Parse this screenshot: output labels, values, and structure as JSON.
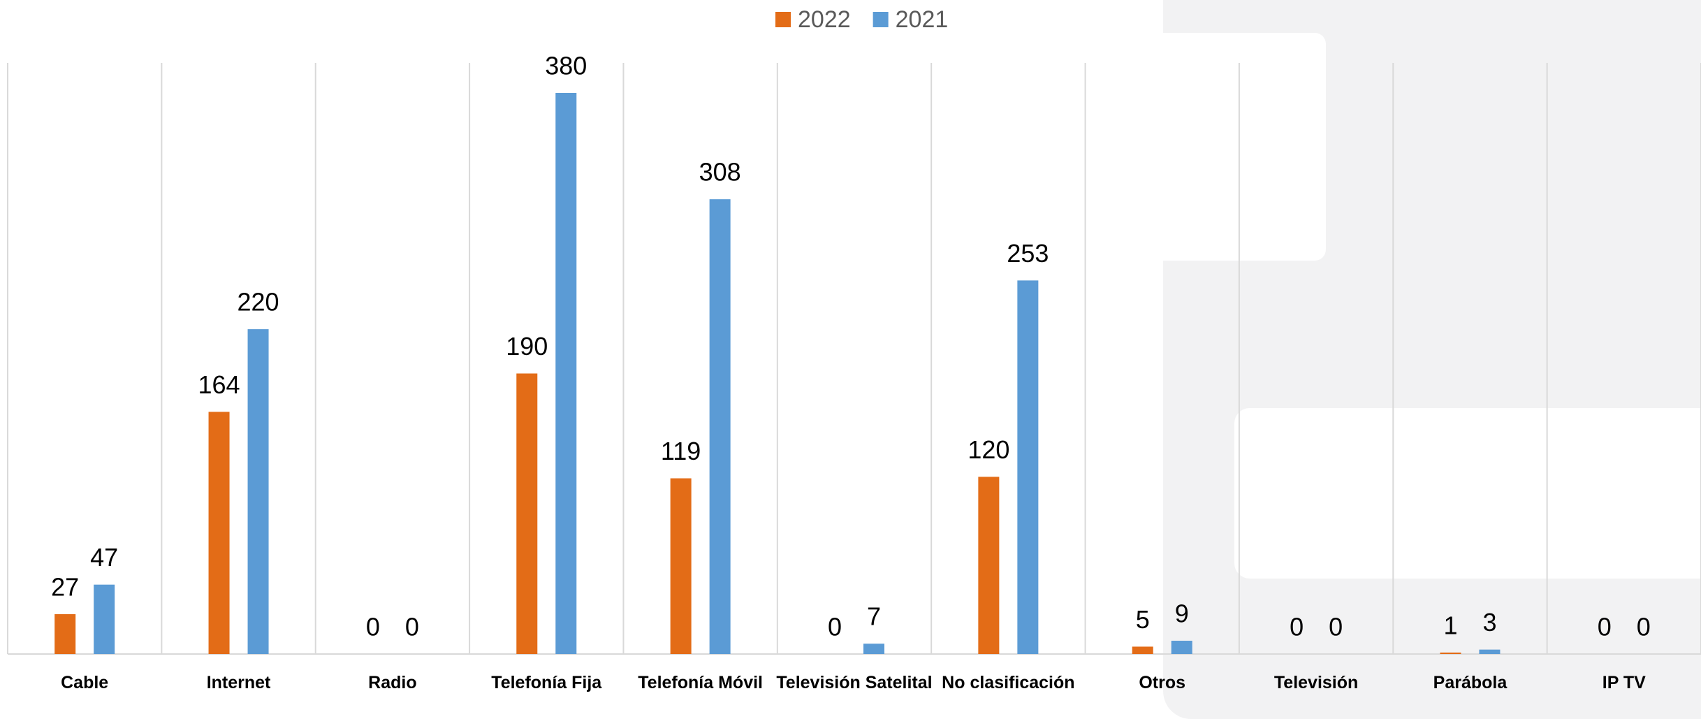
{
  "chart_data": {
    "type": "bar",
    "categories": [
      "Cable",
      "Internet",
      "Radio",
      "Telefonía Fija",
      "Telefonía Móvil",
      "Televisión Satelital",
      "No clasificación",
      "Otros",
      "Televisión",
      "Parábola",
      "IP TV"
    ],
    "series": [
      {
        "name": "2022",
        "color": "#e36c17",
        "values": [
          27,
          164,
          0,
          190,
          119,
          0,
          120,
          5,
          0,
          1,
          0
        ]
      },
      {
        "name": "2021",
        "color": "#5b9bd5",
        "values": [
          47,
          220,
          0,
          380,
          308,
          7,
          253,
          9,
          0,
          3,
          0
        ]
      }
    ],
    "legend": "top"
  }
}
